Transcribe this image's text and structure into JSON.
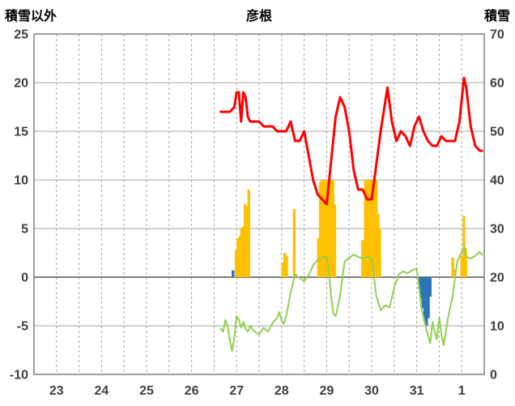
{
  "chart_data": {
    "type": "line",
    "title": "彦根",
    "left_axis": {
      "label": "積雪以外",
      "min": -10,
      "max": 25,
      "ticks": [
        25,
        20,
        15,
        10,
        5,
        0,
        -5,
        -10
      ]
    },
    "right_axis": {
      "label": "積雪",
      "min": 0,
      "max": 70,
      "ticks": [
        70,
        60,
        50,
        40,
        30,
        20,
        10,
        0
      ]
    },
    "x_domain": [
      22.5,
      32.5
    ],
    "x_tick_positions": [
      23,
      24,
      25,
      26,
      27,
      28,
      29,
      30,
      31,
      32
    ],
    "x_tick_labels": [
      "23",
      "24",
      "25",
      "26",
      "27",
      "28",
      "29",
      "30",
      "31",
      "1"
    ],
    "grid": {
      "vertical_step": 0.5,
      "color": "#a6a6a6",
      "zero_line_color": "#7f7f7f",
      "border_color": "#7f7f7f",
      "tick_label_color": "#3f3f3f"
    },
    "bar_series": [
      {
        "name": "yellow-bars",
        "axis": "left",
        "color": "#ffc000",
        "points": [
          [
            26.99,
            2.8
          ],
          [
            27.03,
            4.0
          ],
          [
            27.07,
            4.2
          ],
          [
            27.11,
            5.0
          ],
          [
            27.15,
            5.2
          ],
          [
            27.19,
            7.5
          ],
          [
            27.23,
            7.3
          ],
          [
            27.27,
            9.0
          ],
          [
            28.03,
            1.5
          ],
          [
            28.07,
            2.5
          ],
          [
            28.11,
            2.2
          ],
          [
            28.28,
            7.0
          ],
          [
            28.82,
            4.0
          ],
          [
            28.86,
            9.8
          ],
          [
            28.9,
            10
          ],
          [
            28.94,
            10
          ],
          [
            28.98,
            10
          ],
          [
            29.02,
            10
          ],
          [
            29.06,
            10
          ],
          [
            29.1,
            10
          ],
          [
            29.14,
            10
          ],
          [
            29.18,
            7.5
          ],
          [
            29.8,
            3.8
          ],
          [
            29.86,
            10
          ],
          [
            29.9,
            10
          ],
          [
            29.94,
            10
          ],
          [
            29.98,
            10
          ],
          [
            30.02,
            10
          ],
          [
            30.06,
            10
          ],
          [
            30.1,
            10
          ],
          [
            30.14,
            6.5
          ],
          [
            30.18,
            5.0
          ],
          [
            31.8,
            2.0
          ],
          [
            31.84,
            0.8
          ],
          [
            32.0,
            2.2
          ],
          [
            32.05,
            6.3
          ],
          [
            32.09,
            3.0
          ]
        ]
      },
      {
        "name": "blue-bars",
        "axis": "left",
        "color": "#2e75b6",
        "points": [
          [
            26.92,
            0.7
          ],
          [
            31.06,
            -1.2
          ],
          [
            31.1,
            -2.2
          ],
          [
            31.14,
            -3.2
          ],
          [
            31.18,
            -4.6
          ],
          [
            31.22,
            -5.0
          ],
          [
            31.26,
            -4.2
          ],
          [
            31.3,
            -2.0
          ]
        ]
      }
    ],
    "series": [
      {
        "name": "green-line",
        "axis": "left",
        "color": "#92d050",
        "width": 2,
        "points": [
          [
            26.65,
            -5.3
          ],
          [
            26.7,
            -5.6
          ],
          [
            26.75,
            -4.4
          ],
          [
            26.8,
            -5.0
          ],
          [
            26.85,
            -6.5
          ],
          [
            26.9,
            -7.6
          ],
          [
            26.95,
            -6.2
          ],
          [
            27.0,
            -4.0
          ],
          [
            27.05,
            -4.4
          ],
          [
            27.1,
            -5.2
          ],
          [
            27.15,
            -4.6
          ],
          [
            27.2,
            -5.3
          ],
          [
            27.25,
            -5.6
          ],
          [
            27.3,
            -5.0
          ],
          [
            27.4,
            -5.6
          ],
          [
            27.5,
            -5.9
          ],
          [
            27.6,
            -5.2
          ],
          [
            27.7,
            -5.6
          ],
          [
            27.8,
            -4.7
          ],
          [
            27.9,
            -4.2
          ],
          [
            27.95,
            -3.6
          ],
          [
            28.0,
            -4.5
          ],
          [
            28.05,
            -4.8
          ],
          [
            28.1,
            -4.0
          ],
          [
            28.2,
            -1.6
          ],
          [
            28.3,
            0.3
          ],
          [
            28.4,
            -0.1
          ],
          [
            28.5,
            -0.4
          ],
          [
            28.6,
            0.2
          ],
          [
            28.7,
            1.2
          ],
          [
            28.8,
            1.8
          ],
          [
            28.9,
            2.0
          ],
          [
            29.0,
            2.1
          ],
          [
            29.05,
            0.5
          ],
          [
            29.1,
            -2.0
          ],
          [
            29.15,
            -3.8
          ],
          [
            29.2,
            -4.0
          ],
          [
            29.25,
            -3.0
          ],
          [
            29.3,
            -1.8
          ],
          [
            29.4,
            1.6
          ],
          [
            29.5,
            2.0
          ],
          [
            29.6,
            2.3
          ],
          [
            29.7,
            2.1
          ],
          [
            29.8,
            1.9
          ],
          [
            29.9,
            2.1
          ],
          [
            30.0,
            1.9
          ],
          [
            30.05,
            0.1
          ],
          [
            30.1,
            -1.9
          ],
          [
            30.2,
            -3.4
          ],
          [
            30.3,
            -2.9
          ],
          [
            30.4,
            -3.1
          ],
          [
            30.5,
            -1.1
          ],
          [
            30.6,
            0.3
          ],
          [
            30.7,
            0.6
          ],
          [
            30.8,
            0.4
          ],
          [
            30.9,
            0.7
          ],
          [
            31.0,
            0.9
          ],
          [
            31.05,
            -0.9
          ],
          [
            31.1,
            -3.1
          ],
          [
            31.2,
            -5.1
          ],
          [
            31.3,
            -6.8
          ],
          [
            31.35,
            -4.6
          ],
          [
            31.4,
            -5.6
          ],
          [
            31.45,
            -6.4
          ],
          [
            31.5,
            -4.1
          ],
          [
            31.55,
            -5.9
          ],
          [
            31.6,
            -7.0
          ],
          [
            31.7,
            -4.1
          ],
          [
            31.8,
            -1.9
          ],
          [
            31.9,
            1.6
          ],
          [
            32.0,
            2.6
          ],
          [
            32.05,
            3.1
          ],
          [
            32.1,
            2.1
          ],
          [
            32.2,
            1.9
          ],
          [
            32.3,
            2.2
          ],
          [
            32.4,
            2.6
          ],
          [
            32.45,
            2.3
          ]
        ]
      },
      {
        "name": "red-line",
        "axis": "right",
        "color": "#ff0000",
        "width": 3,
        "points": [
          [
            26.65,
            54
          ],
          [
            26.75,
            54
          ],
          [
            26.85,
            54
          ],
          [
            26.95,
            55
          ],
          [
            27.0,
            58
          ],
          [
            27.05,
            58
          ],
          [
            27.1,
            52
          ],
          [
            27.15,
            58
          ],
          [
            27.2,
            57
          ],
          [
            27.25,
            53
          ],
          [
            27.3,
            52
          ],
          [
            27.4,
            52
          ],
          [
            27.5,
            52
          ],
          [
            27.6,
            51
          ],
          [
            27.7,
            51
          ],
          [
            27.8,
            51
          ],
          [
            27.9,
            50
          ],
          [
            28.0,
            50
          ],
          [
            28.1,
            50
          ],
          [
            28.2,
            52
          ],
          [
            28.3,
            48
          ],
          [
            28.4,
            48
          ],
          [
            28.5,
            50
          ],
          [
            28.6,
            45
          ],
          [
            28.7,
            40
          ],
          [
            28.8,
            37
          ],
          [
            28.9,
            36
          ],
          [
            29.0,
            35
          ],
          [
            29.1,
            44
          ],
          [
            29.2,
            53
          ],
          [
            29.3,
            57
          ],
          [
            29.4,
            55
          ],
          [
            29.5,
            50
          ],
          [
            29.6,
            42
          ],
          [
            29.7,
            38
          ],
          [
            29.8,
            38
          ],
          [
            29.9,
            36
          ],
          [
            30.0,
            36
          ],
          [
            30.1,
            43
          ],
          [
            30.2,
            50
          ],
          [
            30.3,
            56
          ],
          [
            30.35,
            59
          ],
          [
            30.45,
            52
          ],
          [
            30.55,
            48
          ],
          [
            30.65,
            50
          ],
          [
            30.75,
            49
          ],
          [
            30.85,
            47
          ],
          [
            30.95,
            51
          ],
          [
            31.05,
            53
          ],
          [
            31.15,
            50
          ],
          [
            31.25,
            48
          ],
          [
            31.35,
            47
          ],
          [
            31.45,
            47
          ],
          [
            31.55,
            49
          ],
          [
            31.65,
            48
          ],
          [
            31.75,
            48
          ],
          [
            31.85,
            48
          ],
          [
            31.95,
            52
          ],
          [
            32.05,
            61
          ],
          [
            32.1,
            59
          ],
          [
            32.2,
            51
          ],
          [
            32.3,
            47
          ],
          [
            32.4,
            46
          ],
          [
            32.45,
            46
          ]
        ]
      }
    ]
  }
}
